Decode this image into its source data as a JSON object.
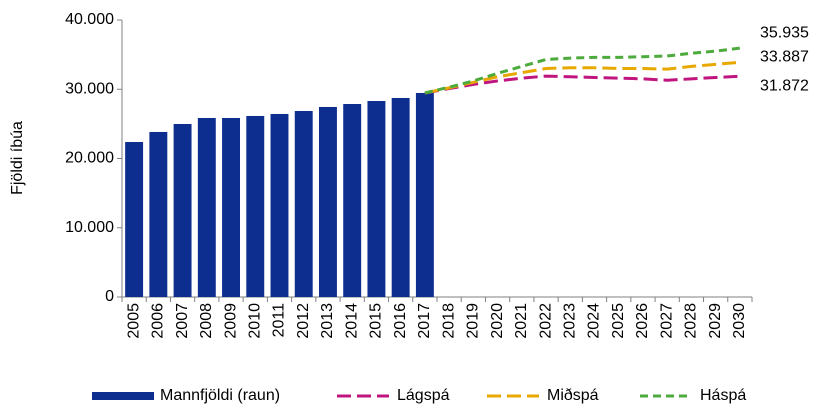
{
  "chart_data": {
    "type": "bar",
    "y_label": "Fjöldi íbúa",
    "categories": [
      "2005",
      "2006",
      "2007",
      "2008",
      "2009",
      "2010",
      "2011",
      "2012",
      "2013",
      "2014",
      "2015",
      "2016",
      "2017",
      "2018",
      "2019",
      "2020",
      "2021",
      "2022",
      "2023",
      "2024",
      "2025",
      "2026",
      "2027",
      "2028",
      "2029",
      "2030"
    ],
    "ylim": [
      0,
      40000
    ],
    "yticks": [
      0,
      {
        "value": 10000,
        "label": "10.000"
      },
      {
        "value": 20000,
        "label": "20.000"
      },
      {
        "value": 30000,
        "label": "30.000"
      },
      {
        "value": 40000,
        "label": "40.000"
      }
    ],
    "series": [
      {
        "name": "Mannfjöldi (raun)",
        "type": "bar",
        "color": "#0d2e8f",
        "values": [
          22380,
          23830,
          24980,
          25850,
          25850,
          26140,
          26430,
          26860,
          27440,
          27870,
          28300,
          28740,
          29460,
          null,
          null,
          null,
          null,
          null,
          null,
          null,
          null,
          null,
          null,
          null,
          null,
          null
        ]
      },
      {
        "name": "Lágspá",
        "type": "line",
        "color": "#c0147f",
        "values": [
          null,
          null,
          null,
          null,
          null,
          null,
          null,
          null,
          null,
          null,
          null,
          null,
          29460,
          30100,
          30700,
          31200,
          31600,
          31900,
          31800,
          31700,
          31600,
          31500,
          31300,
          31500,
          31700,
          31872
        ],
        "value_labels": [
          null,
          null,
          null,
          null,
          null,
          null,
          null,
          null,
          null,
          null,
          null,
          null,
          null,
          null,
          null,
          null,
          null,
          null,
          null,
          null,
          null,
          null,
          null,
          null,
          null,
          "31.872"
        ]
      },
      {
        "name": "Miðspá",
        "type": "line",
        "color": "#e8a800",
        "values": [
          null,
          null,
          null,
          null,
          null,
          null,
          null,
          null,
          null,
          null,
          null,
          null,
          29460,
          30200,
          31000,
          31800,
          32400,
          33000,
          33100,
          33100,
          33000,
          33000,
          32900,
          33300,
          33600,
          33887
        ],
        "value_labels": [
          null,
          null,
          null,
          null,
          null,
          null,
          null,
          null,
          null,
          null,
          null,
          null,
          null,
          null,
          null,
          null,
          null,
          null,
          null,
          null,
          null,
          null,
          null,
          null,
          null,
          "33.887"
        ]
      },
      {
        "name": "Háspá",
        "type": "line",
        "color": "#4daa3c",
        "values": [
          null,
          null,
          null,
          null,
          null,
          null,
          null,
          null,
          null,
          null,
          null,
          null,
          29460,
          30300,
          31200,
          32300,
          33300,
          34300,
          34500,
          34600,
          34600,
          34700,
          34800,
          35200,
          35500,
          35935
        ],
        "value_labels": [
          null,
          null,
          null,
          null,
          null,
          null,
          null,
          null,
          null,
          null,
          null,
          null,
          null,
          null,
          null,
          null,
          null,
          null,
          null,
          null,
          null,
          null,
          null,
          null,
          null,
          "35.935"
        ]
      }
    ]
  }
}
